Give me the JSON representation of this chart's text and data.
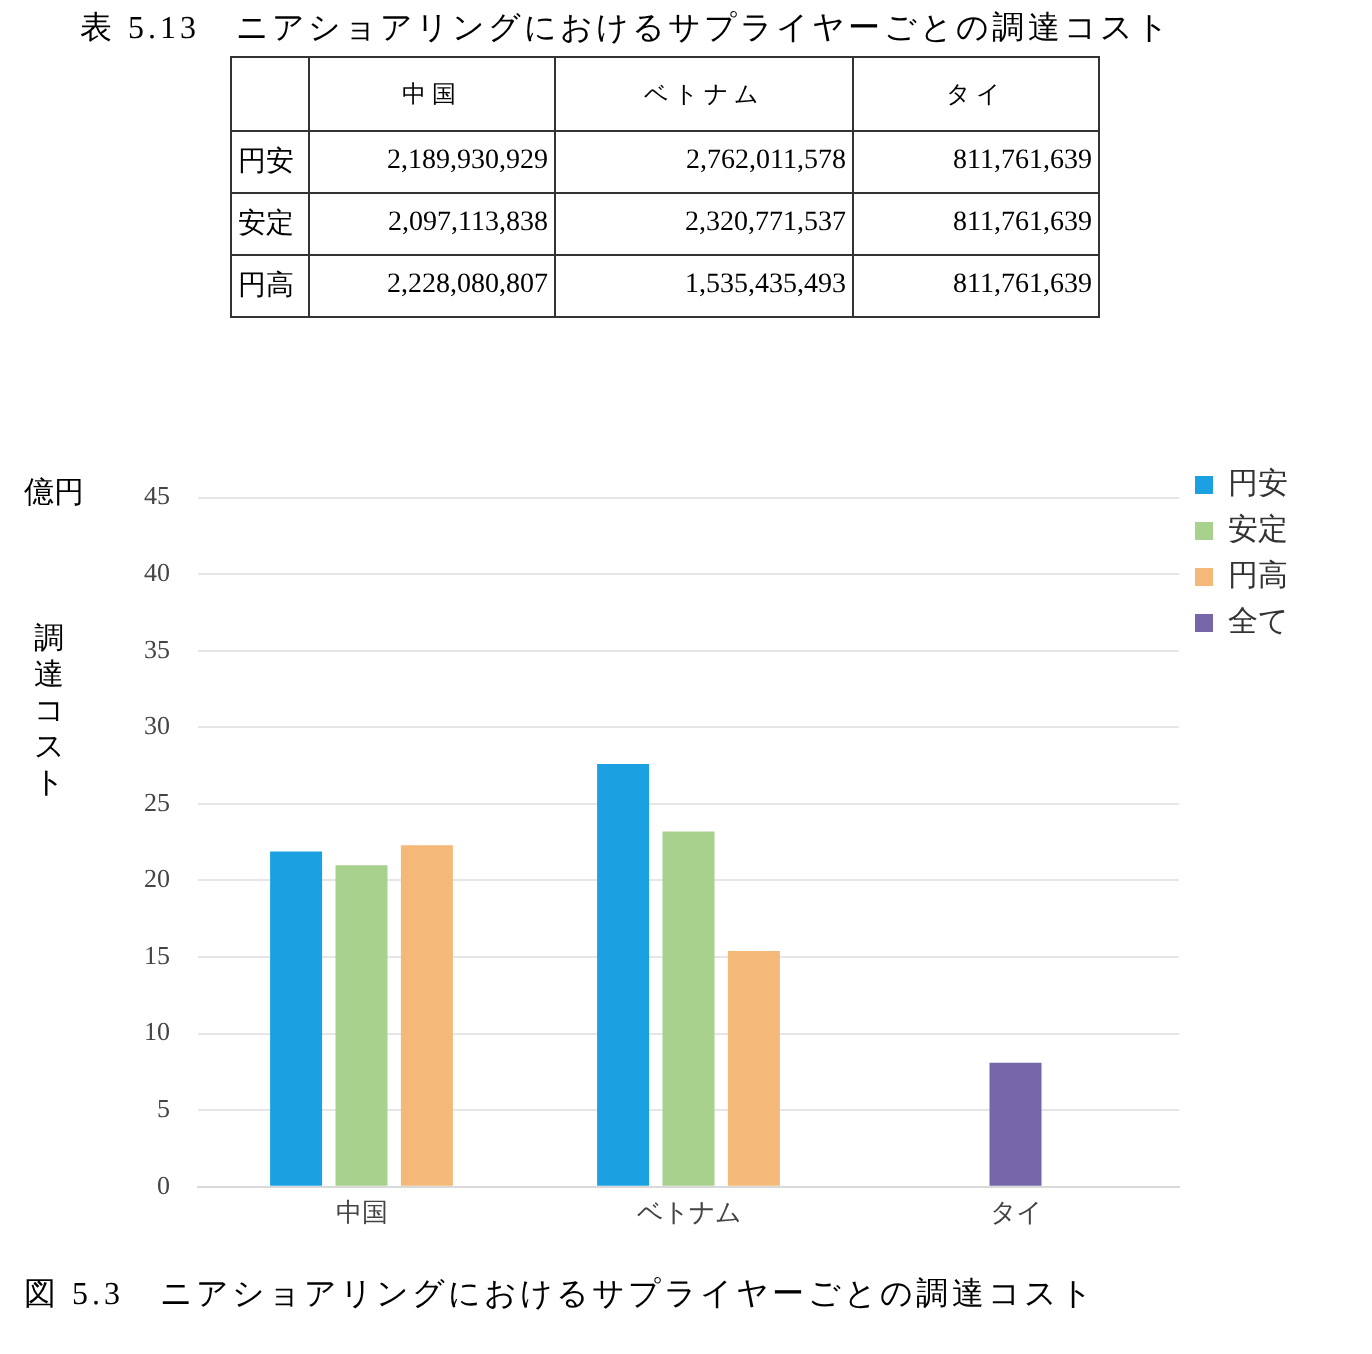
{
  "chart_data": [
    {
      "type": "other",
      "title": "表 5.13　ニアショアリングにおけるサプライヤーごとの調達コスト",
      "categories": [
        "中国",
        "ベトナム",
        "タイ"
      ],
      "y_categories": [
        "円安",
        "安定",
        "円高"
      ],
      "cells": [
        [
          "2,189,930,929",
          "2,762,011,578",
          "811,761,639"
        ],
        [
          "2,097,113,838",
          "2,320,771,537",
          "811,761,639"
        ],
        [
          "2,228,080,807",
          "1,535,435,493",
          "811,761,639"
        ]
      ]
    },
    {
      "type": "bar",
      "title": "図 5.3　ニアショアリングにおけるサプライヤーごとの調達コスト",
      "ylabel": "調達コスト",
      "annotations": [
        "億円"
      ],
      "categories": [
        "中国",
        "ベトナム",
        "タイ"
      ],
      "series": [
        {
          "name": "円安",
          "color": "#1ba1e2",
          "values": [
            21.9,
            27.6,
            null
          ]
        },
        {
          "name": "安定",
          "color": "#a9d18e",
          "values": [
            21.0,
            23.2,
            null
          ]
        },
        {
          "name": "円高",
          "color": "#f4b978",
          "values": [
            22.3,
            15.4,
            null
          ]
        },
        {
          "name": "全て",
          "color": "#7466a8",
          "values": [
            null,
            null,
            8.1
          ]
        }
      ],
      "ylim": [
        0,
        45
      ],
      "yticks": [
        0,
        5,
        10,
        15,
        20,
        25,
        30,
        35,
        40,
        45
      ],
      "grid": "y",
      "legend": "top right"
    }
  ]
}
